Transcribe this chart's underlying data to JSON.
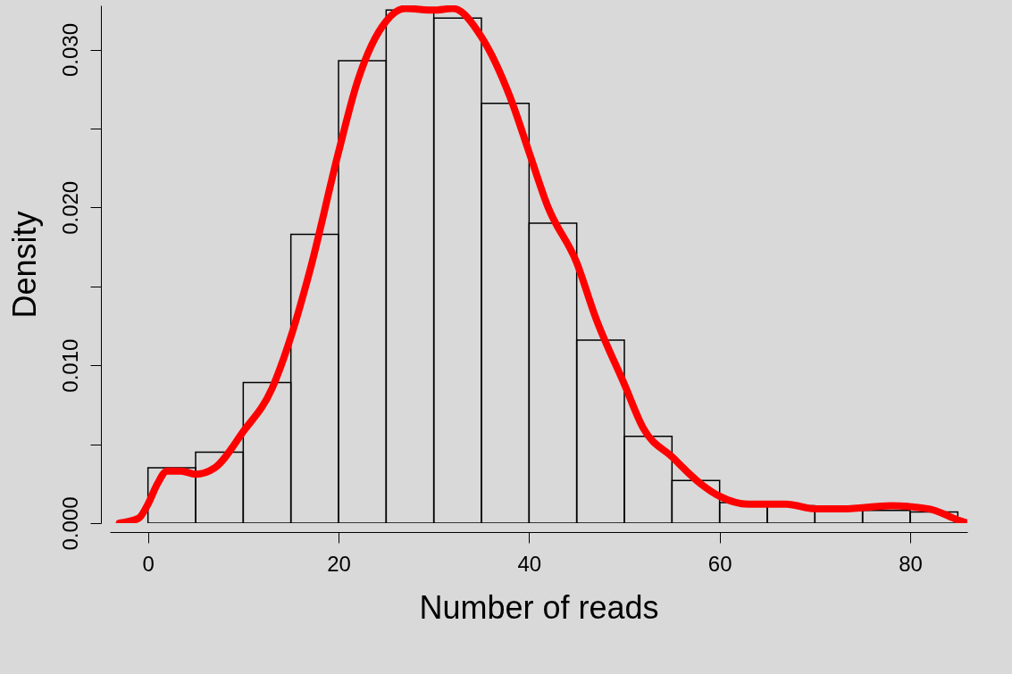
{
  "chart_data": {
    "type": "histogram",
    "xlabel": "Number of reads",
    "ylabel": "Density",
    "xlim": [
      -4,
      86
    ],
    "ylim": [
      0,
      0.0328
    ],
    "xticks": [
      0,
      20,
      40,
      60,
      80
    ],
    "yticks": [
      {
        "value": 0,
        "label": "0.000"
      },
      {
        "value": 0.005,
        "label": null
      },
      {
        "value": 0.01,
        "label": "0.010"
      },
      {
        "value": 0.015,
        "label": null
      },
      {
        "value": 0.02,
        "label": "0.020"
      },
      {
        "value": 0.025,
        "label": null
      },
      {
        "value": 0.03,
        "label": "0.030"
      }
    ],
    "series": [
      {
        "color": "#000000",
        "bins": [
          0,
          5,
          10,
          15,
          20,
          25,
          30,
          35,
          40,
          45,
          50,
          55,
          60,
          65,
          70,
          75,
          80,
          85
        ],
        "values": [
          0.0035,
          0.0045,
          0.0089,
          0.0183,
          0.0293,
          0.0325,
          0.032,
          0.0266,
          0.019,
          0.0116,
          0.0055,
          0.0027,
          0.0013,
          0.0011,
          0.0008,
          0.0008,
          0.0007
        ]
      },
      {
        "type": "line",
        "color": "#ff0000",
        "x": [
          -3,
          -1,
          0,
          1,
          2,
          3.5,
          5,
          7,
          10,
          13,
          15,
          17,
          20,
          22,
          25,
          27,
          30,
          32,
          35,
          38,
          40,
          42,
          45,
          47,
          50,
          52,
          55,
          58,
          60,
          63,
          67,
          70,
          73,
          78,
          82,
          85,
          86
        ],
        "values": [
          0,
          0.0003,
          0.0012,
          0.0025,
          0.0033,
          0.0033,
          0.0031,
          0.0035,
          0.0058,
          0.0085,
          0.0118,
          0.016,
          0.0235,
          0.028,
          0.0318,
          0.0326,
          0.0325,
          0.0326,
          0.0308,
          0.027,
          0.0235,
          0.02,
          0.0165,
          0.013,
          0.0088,
          0.006,
          0.0042,
          0.0025,
          0.0017,
          0.0012,
          0.0012,
          0.0009,
          0.0009,
          0.0011,
          0.0009,
          0.0002,
          0
        ]
      }
    ]
  }
}
